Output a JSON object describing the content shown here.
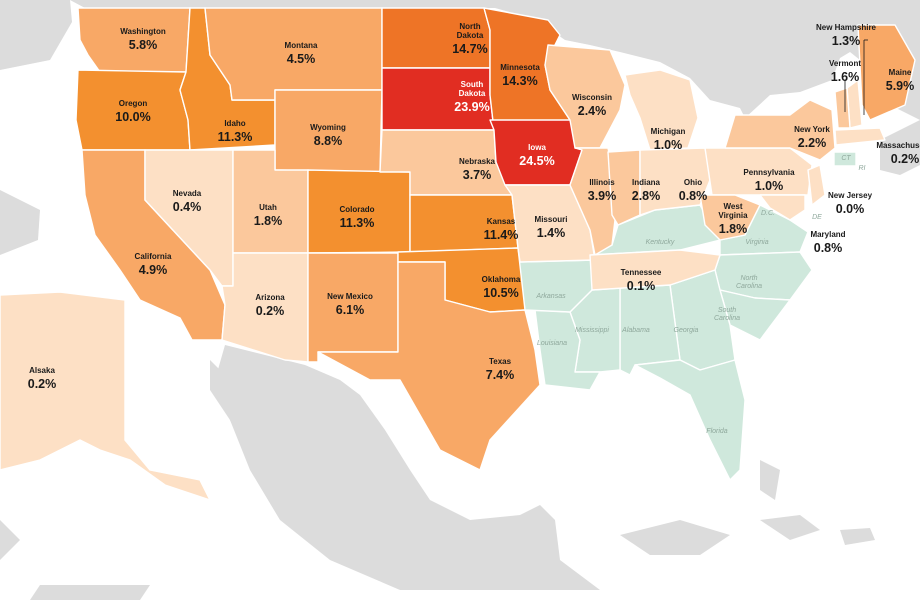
{
  "colors": {
    "background": "#ffffff",
    "land_other": "#dcdcdc",
    "water": "#ffffff",
    "no_data": "#cfe8dc",
    "scale": [
      "#fde0c5",
      "#fbc89c",
      "#f8a866",
      "#f3902f",
      "#ee7426",
      "#e12d22"
    ]
  },
  "states": [
    {
      "name": "Washington",
      "value": "5.8%",
      "v": 5.8
    },
    {
      "name": "Oregon",
      "value": "10.0%",
      "v": 10.0
    },
    {
      "name": "California",
      "value": "4.9%",
      "v": 4.9
    },
    {
      "name": "Idaho",
      "value": "11.3%",
      "v": 11.3
    },
    {
      "name": "Nevada",
      "value": "0.4%",
      "v": 0.4
    },
    {
      "name": "Montana",
      "value": "4.5%",
      "v": 4.5
    },
    {
      "name": "Wyoming",
      "value": "8.8%",
      "v": 8.8
    },
    {
      "name": "Utah",
      "value": "1.8%",
      "v": 1.8
    },
    {
      "name": "Arizona",
      "value": "0.2%",
      "v": 0.2
    },
    {
      "name": "Colorado",
      "value": "11.3%",
      "v": 11.3
    },
    {
      "name": "New Mexico",
      "value": "6.1%",
      "v": 6.1
    },
    {
      "name": "North Dakota",
      "value": "14.7%",
      "v": 14.7
    },
    {
      "name": "South Dakota",
      "value": "23.9%",
      "v": 23.9
    },
    {
      "name": "Nebraska",
      "value": "3.7%",
      "v": 3.7
    },
    {
      "name": "Kansas",
      "value": "11.4%",
      "v": 11.4
    },
    {
      "name": "Oklahoma",
      "value": "10.5%",
      "v": 10.5
    },
    {
      "name": "Texas",
      "value": "7.4%",
      "v": 7.4
    },
    {
      "name": "Minnesota",
      "value": "14.3%",
      "v": 14.3
    },
    {
      "name": "Iowa",
      "value": "24.5%",
      "v": 24.5
    },
    {
      "name": "Missouri",
      "value": "1.4%",
      "v": 1.4
    },
    {
      "name": "Wisconsin",
      "value": "2.4%",
      "v": 2.4
    },
    {
      "name": "Illinois",
      "value": "3.9%",
      "v": 3.9
    },
    {
      "name": "Michigan",
      "value": "1.0%",
      "v": 1.0
    },
    {
      "name": "Indiana",
      "value": "2.8%",
      "v": 2.8
    },
    {
      "name": "Ohio",
      "value": "0.8%",
      "v": 0.8
    },
    {
      "name": "Tennessee",
      "value": "0.1%",
      "v": 0.1
    },
    {
      "name": "Pennsylvania",
      "value": "1.0%",
      "v": 1.0
    },
    {
      "name": "West Virginia",
      "value": "1.8%",
      "v": 1.8
    },
    {
      "name": "New York",
      "value": "2.2%",
      "v": 2.2
    },
    {
      "name": "New Hampshire",
      "value": "1.3%",
      "v": 1.3
    },
    {
      "name": "Vermont",
      "value": "1.6%",
      "v": 1.6
    },
    {
      "name": "Maine",
      "value": "5.9%",
      "v": 5.9
    },
    {
      "name": "Massachusetts",
      "value": "0.2%",
      "v": 0.2
    },
    {
      "name": "New Jersey",
      "value": "0.0%",
      "v": 0.0
    },
    {
      "name": "Maryland",
      "value": "0.8%",
      "v": 0.8
    },
    {
      "name": "Alsaka",
      "value": "0.2%",
      "v": 0.2
    }
  ],
  "no_data_states": [
    "Kentucky",
    "Virginia",
    "North Carolina",
    "South Carolina",
    "Georgia",
    "Alabama",
    "Mississippi",
    "Louisiana",
    "Arkansas",
    "Florida"
  ],
  "abbreviations": [
    "CT",
    "RI",
    "DE",
    "D.C."
  ]
}
